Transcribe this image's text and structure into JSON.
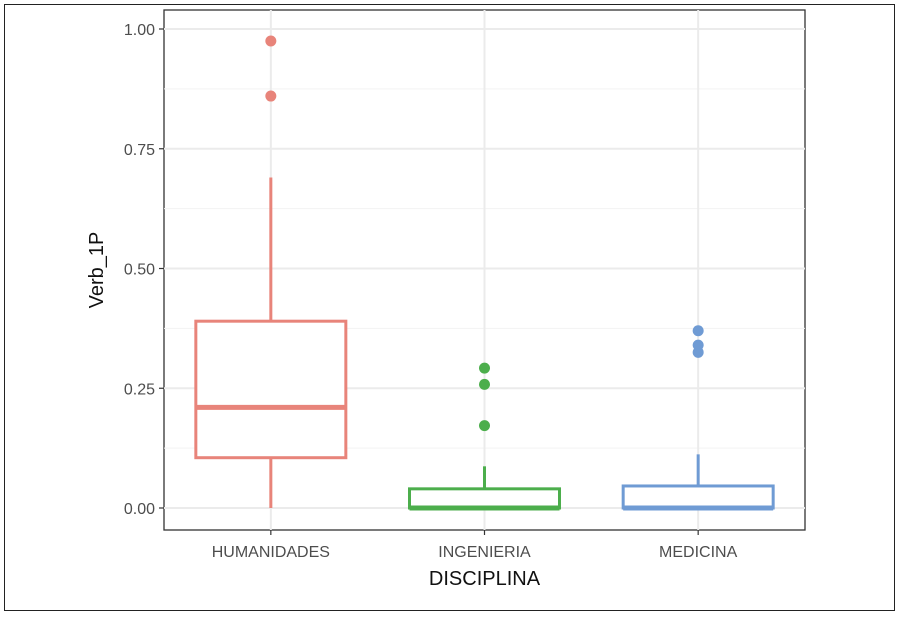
{
  "chart_data": {
    "type": "boxplot",
    "title": "",
    "xlabel": "DISCIPLINA",
    "ylabel": "Verb_1P",
    "ylim": [
      -0.05,
      1.05
    ],
    "yticks": [
      0.0,
      0.25,
      0.5,
      0.75,
      1.0
    ],
    "ytick_labels": [
      "0.00",
      "0.25",
      "0.50",
      "0.75",
      "1.00"
    ],
    "grid": true,
    "legend": "none",
    "categories": [
      "HUMANIDADES",
      "INGENIERIA",
      "MEDICINA"
    ],
    "colors": [
      "#e8847a",
      "#4cae4c",
      "#6f9bd4"
    ],
    "boxes": [
      {
        "name": "HUMANIDADES",
        "whisker_low": 0.0,
        "q1": 0.105,
        "median": 0.21,
        "q3": 0.39,
        "whisker_high": 0.69,
        "outliers": [
          0.86,
          0.975
        ]
      },
      {
        "name": "INGENIERIA",
        "whisker_low": 0.0,
        "q1": 0.0,
        "median": 0.0,
        "q3": 0.04,
        "whisker_high": 0.087,
        "outliers": [
          0.172,
          0.258,
          0.292
        ]
      },
      {
        "name": "MEDICINA",
        "whisker_low": 0.0,
        "q1": 0.0,
        "median": 0.0,
        "q3": 0.046,
        "whisker_high": 0.112,
        "outliers": [
          0.325,
          0.34,
          0.37
        ]
      }
    ]
  }
}
